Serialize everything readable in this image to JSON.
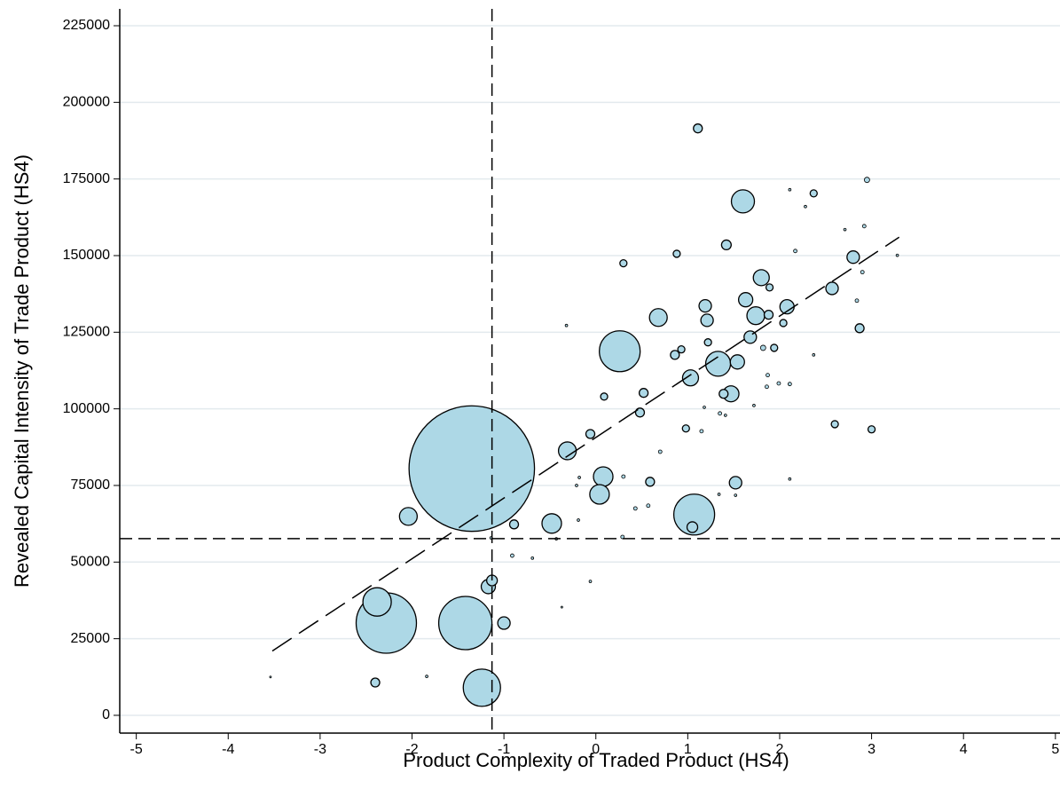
{
  "chart_data": {
    "type": "bubble",
    "xlabel": "Product Complexity of Traded Product (HS4)",
    "ylabel": "Revealed Capital Intensity of Trade Product (HS4)",
    "color": "#add8e6",
    "edgecolor": "#000000",
    "grid": true,
    "xlim": [
      -5.18,
      5.05
    ],
    "ylim": [
      -5800,
      230500
    ],
    "xticks": [
      -5,
      -4,
      -3,
      -2,
      -1,
      0,
      1,
      2,
      3,
      4,
      5
    ],
    "yticks": [
      0,
      25000,
      50000,
      75000,
      100000,
      125000,
      150000,
      175000,
      200000,
      225000
    ],
    "reference_lines": {
      "x": -1.13,
      "y": 57650
    },
    "fit_line": {
      "x": [
        -3.52,
        3.3
      ],
      "values": [
        21000,
        156000
      ]
    },
    "x": [
      -1.35,
      -2.28,
      -1.42,
      -1.24,
      -2.38,
      0.26,
      1.07,
      1.6,
      1.33,
      -2.04,
      -0.48,
      -0.31,
      0.08,
      0.04,
      0.68,
      1.47,
      1.74,
      1.8,
      1.63,
      2.08,
      1.68,
      1.54,
      1.03,
      1.52,
      -1.17,
      -1.13,
      -1.0,
      2.8,
      2.57,
      1.19,
      1.21,
      -0.89,
      -2.4,
      1.05,
      1.39,
      1.11,
      1.42,
      1.88,
      1.94,
      0.48,
      0.52,
      0.59,
      -0.06,
      0.09,
      0.98,
      2.6,
      3.0,
      2.87,
      2.37,
      2.95,
      0.88,
      0.3,
      0.93,
      0.86,
      1.22,
      1.82,
      2.04,
      1.89,
      -3.54,
      -1.84,
      -0.37,
      -0.06,
      -0.69,
      -0.91,
      -1.14,
      -0.32,
      0.29,
      0.43,
      0.57,
      0.3,
      0.7,
      1.15,
      1.35,
      3.28,
      2.92,
      2.71,
      2.11,
      2.28,
      2.17,
      2.9,
      2.84,
      2.37,
      2.11,
      1.99,
      1.87,
      1.86,
      1.72,
      1.18,
      1.41,
      1.34,
      1.52,
      2.11,
      -0.19,
      -0.21,
      -0.18,
      -0.43
    ],
    "values": [
      80500,
      30100,
      30100,
      9000,
      37000,
      118800,
      65500,
      167700,
      114700,
      64900,
      62600,
      86300,
      77900,
      72100,
      129800,
      104900,
      130400,
      142800,
      135600,
      133300,
      123400,
      115300,
      110100,
      75900,
      42000,
      44000,
      30100,
      149500,
      139300,
      133600,
      128900,
      62300,
      10700,
      61400,
      104900,
      191500,
      153500,
      130700,
      119900,
      98800,
      105200,
      76200,
      91800,
      104000,
      93600,
      95000,
      93300,
      126300,
      170300,
      174700,
      150600,
      147500,
      119400,
      117600,
      121700,
      119900,
      128000,
      139600,
      12500,
      12700,
      35300,
      43700,
      51300,
      52100,
      57900,
      127200,
      58200,
      67500,
      68400,
      77900,
      86000,
      92700,
      98500,
      150100,
      159600,
      158500,
      171500,
      166000,
      151500,
      144600,
      135300,
      117600,
      108100,
      108300,
      111000,
      107200,
      101100,
      100500,
      97900,
      72100,
      71800,
      77100,
      63700,
      75000,
      77600,
      57600
    ],
    "sizes": [
      5000,
      1156,
      900,
      441,
      256,
      529,
      529,
      169,
      196,
      100,
      121,
      100,
      121,
      121,
      100,
      81,
      100,
      81,
      64,
      64,
      49,
      64,
      81,
      49,
      64,
      36,
      49,
      49,
      49,
      49,
      49,
      25,
      25,
      36,
      25,
      25,
      30,
      25,
      16,
      25,
      25,
      25,
      25,
      16,
      16,
      16,
      16,
      25,
      16,
      9,
      16,
      16,
      16,
      25,
      16,
      9,
      16,
      16,
      1,
      2,
      1,
      2,
      2,
      4,
      2,
      2,
      4,
      4,
      4,
      4,
      4,
      4,
      4,
      2,
      4,
      2,
      2,
      2,
      4,
      4,
      4,
      2,
      4,
      4,
      4,
      4,
      2,
      2,
      2,
      2,
      2,
      2,
      2,
      2,
      2,
      2
    ]
  }
}
